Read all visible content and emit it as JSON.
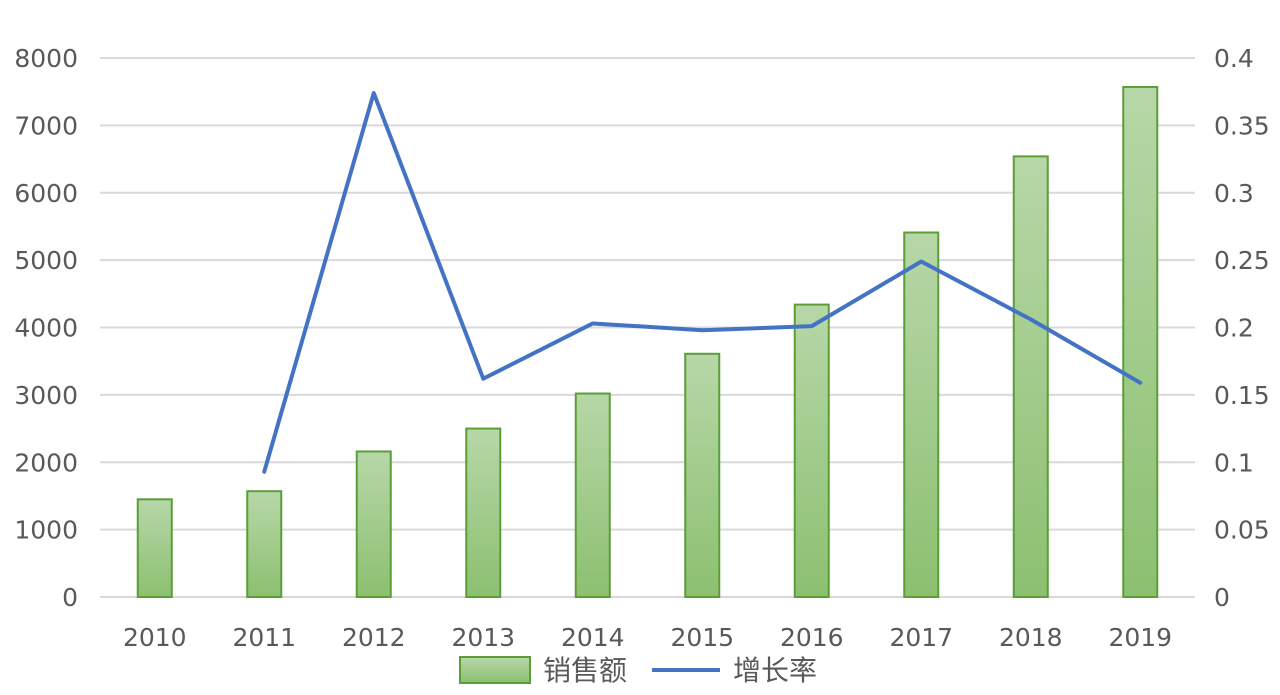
{
  "chart_data": {
    "type": "bar",
    "categories": [
      "2010",
      "2011",
      "2012",
      "2013",
      "2014",
      "2015",
      "2016",
      "2017",
      "2018",
      "2019"
    ],
    "series": [
      {
        "name": "销售额",
        "type": "bar",
        "axis": "left",
        "values": [
          1450,
          1570,
          2160,
          2500,
          3020,
          3610,
          4340,
          5410,
          6540,
          7570
        ]
      },
      {
        "name": "增长率",
        "type": "line",
        "axis": "right",
        "values": [
          null,
          0.093,
          0.374,
          0.162,
          0.203,
          0.198,
          0.201,
          0.249,
          0.206,
          0.159
        ]
      }
    ],
    "y_left": {
      "ylim": [
        0,
        8000
      ],
      "ticks": [
        "0",
        "1000",
        "2000",
        "3000",
        "4000",
        "5000",
        "6000",
        "7000",
        "8000"
      ]
    },
    "y_right": {
      "ylim": [
        0,
        0.4
      ],
      "ticks": [
        "0",
        "0.05",
        "0.1",
        "0.15",
        "0.2",
        "0.25",
        "0.3",
        "0.35",
        "0.4"
      ]
    },
    "grid": true,
    "legend": "bottom",
    "colors": {
      "bar_fill_top": "#b7d7a8",
      "bar_fill_bottom": "#8cc070",
      "bar_border": "#5b9e35",
      "line": "#4472c4",
      "grid": "#d9d9d9",
      "text": "#595959"
    }
  }
}
